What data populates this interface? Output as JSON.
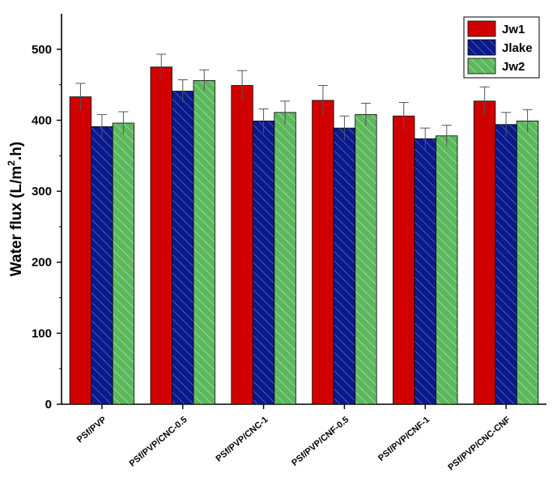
{
  "chart_data": {
    "type": "bar",
    "title": "",
    "xlabel": "",
    "ylabel": "Water flux (L/m",
    "ylabel_sup": "2",
    "ylabel_tail": ".h)",
    "ylim": [
      0,
      550
    ],
    "yticks": [
      0,
      100,
      200,
      300,
      400,
      500
    ],
    "grid": false,
    "legend_position": "top-right",
    "categories": [
      "PSf/PVP",
      "PSf/PVP/CNC-0.5",
      "PSf/PVP/CNC-1",
      "PSf/PVP/CNF-0.5",
      "PSf/PVP/CNF-1",
      "PSf/PVP/CNC-CNF"
    ],
    "series": [
      {
        "name": "Jw1",
        "color": "#d10000",
        "pattern": "none",
        "values": [
          433,
          475,
          449,
          428,
          406,
          427
        ],
        "errors": [
          19,
          18,
          21,
          21,
          19,
          20
        ]
      },
      {
        "name": "Jlake",
        "color": "#0a1a8c",
        "pattern": "diagonal-hatch",
        "values": [
          391,
          441,
          399,
          389,
          374,
          394
        ],
        "errors": [
          17,
          16,
          17,
          17,
          15,
          17
        ]
      },
      {
        "name": "Jw2",
        "color": "#5cb85c",
        "pattern": "diagonal-hatch",
        "values": [
          396,
          456,
          411,
          408,
          378,
          399
        ],
        "errors": [
          16,
          15,
          16,
          16,
          15,
          16
        ]
      }
    ]
  }
}
